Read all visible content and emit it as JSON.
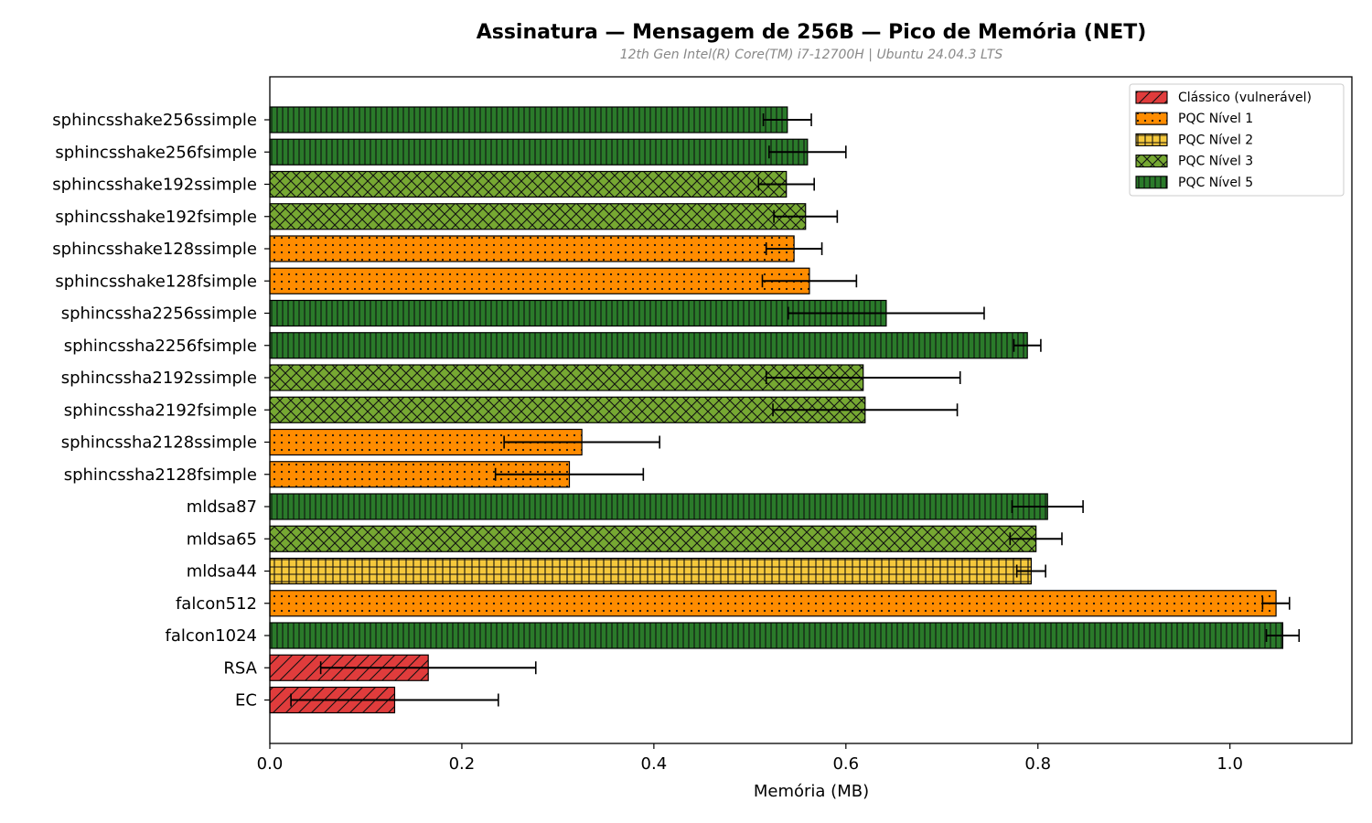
{
  "chart_data": {
    "type": "bar",
    "orientation": "horizontal",
    "title": "Assinatura — Mensagem de 256B — Pico de Memória (NET)",
    "subtitle": "12th Gen Intel(R) Core(TM) i7-12700H | Ubuntu 24.04.3 LTS",
    "xlabel": "Memória (MB)",
    "ylabel": "",
    "xlim": [
      0,
      1.127
    ],
    "xticks": [
      0.0,
      0.2,
      0.4,
      0.6,
      0.8,
      1.0
    ],
    "xtick_labels": [
      "0.0",
      "0.2",
      "0.4",
      "0.6",
      "0.8",
      "1.0"
    ],
    "grid": false,
    "legend_position": "top-right",
    "categories": [
      "sphincsshake256ssimple",
      "sphincsshake256fsimple",
      "sphincsshake192ssimple",
      "sphincsshake192fsimple",
      "sphincsshake128ssimple",
      "sphincsshake128fsimple",
      "sphincssha2256ssimple",
      "sphincssha2256fsimple",
      "sphincssha2192ssimple",
      "sphincssha2192fsimple",
      "sphincssha2128ssimple",
      "sphincssha2128fsimple",
      "mldsa87",
      "mldsa65",
      "mldsa44",
      "falcon512",
      "falcon1024",
      "RSA",
      "EC"
    ],
    "values": [
      0.539,
      0.56,
      0.538,
      0.558,
      0.546,
      0.562,
      0.642,
      0.789,
      0.618,
      0.62,
      0.325,
      0.312,
      0.81,
      0.798,
      0.793,
      1.048,
      1.055,
      0.165,
      0.13
    ],
    "errors": [
      0.025,
      0.04,
      0.029,
      0.033,
      0.029,
      0.049,
      0.102,
      0.014,
      0.101,
      0.096,
      0.081,
      0.077,
      0.037,
      0.027,
      0.015,
      0.014,
      0.017,
      0.112,
      0.108
    ],
    "levels": [
      "PQC Nível 5",
      "PQC Nível 5",
      "PQC Nível 3",
      "PQC Nível 3",
      "PQC Nível 1",
      "PQC Nível 1",
      "PQC Nível 5",
      "PQC Nível 5",
      "PQC Nível 3",
      "PQC Nível 3",
      "PQC Nível 1",
      "PQC Nível 1",
      "PQC Nível 5",
      "PQC Nível 3",
      "PQC Nível 2",
      "PQC Nível 1",
      "PQC Nível 5",
      "Clássico (vulnerável)",
      "Clássico (vulnerável)"
    ],
    "legend": [
      {
        "name": "Clássico (vulnerável)",
        "color": "#e03c3c",
        "pattern": "diagonal"
      },
      {
        "name": "PQC Nível 1",
        "color": "#ff8c00",
        "pattern": "dots"
      },
      {
        "name": "PQC Nível 2",
        "color": "#f5c83c",
        "pattern": "grid"
      },
      {
        "name": "PQC Nível 3",
        "color": "#76a832",
        "pattern": "crosshatch"
      },
      {
        "name": "PQC Nível 5",
        "color": "#2a7a2a",
        "pattern": "vertical"
      }
    ]
  }
}
